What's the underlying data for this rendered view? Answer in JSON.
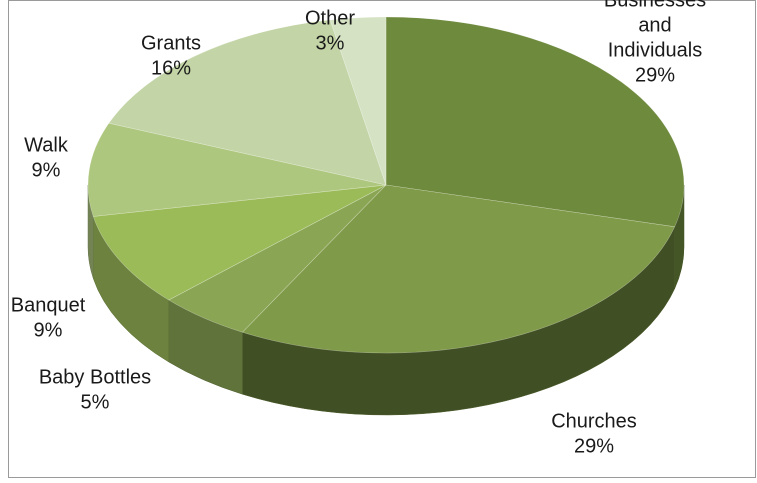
{
  "chart_data": {
    "type": "pie",
    "subtype": "3d-exploded-view",
    "title": "",
    "slices": [
      {
        "label_lines": [
          "Businesses",
          "and",
          "Individuals"
        ],
        "percent_label": "29%",
        "value": 29,
        "color": "#6e8a3d"
      },
      {
        "label_lines": [
          "Churches"
        ],
        "percent_label": "29%",
        "value": 29,
        "color": "#7f9a48"
      },
      {
        "label_lines": [
          "Baby Bottles"
        ],
        "percent_label": "5%",
        "value": 5,
        "color": "#8aa654"
      },
      {
        "label_lines": [
          "Banquet"
        ],
        "percent_label": "9%",
        "value": 9,
        "color": "#9bbb59"
      },
      {
        "label_lines": [
          "Walk"
        ],
        "percent_label": "9%",
        "value": 9,
        "color": "#aec77f"
      },
      {
        "label_lines": [
          "Grants"
        ],
        "percent_label": "16%",
        "value": 16,
        "color": "#c3d4a6"
      },
      {
        "label_lines": [
          "Other"
        ],
        "percent_label": "3%",
        "value": 3,
        "color": "#d6e2c4"
      }
    ],
    "legend": "none",
    "data_labels": "category name and percentage outside slices"
  }
}
